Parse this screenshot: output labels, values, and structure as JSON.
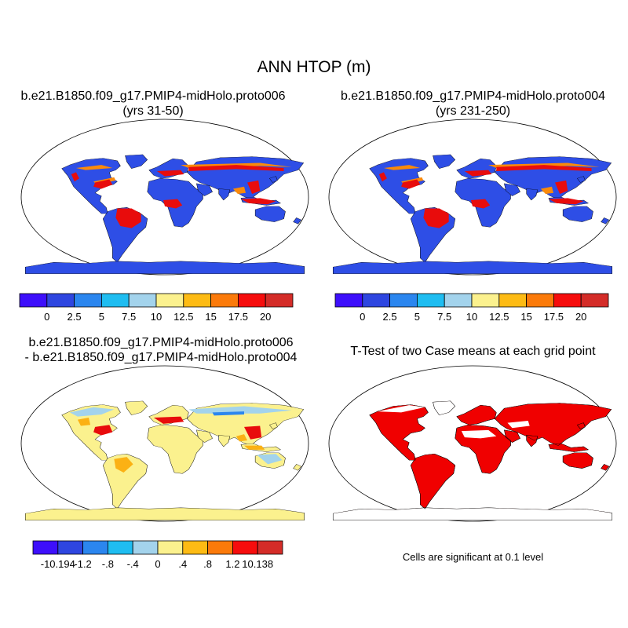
{
  "title": "ANN HTOP (m)",
  "panels": [
    {
      "id": "case1",
      "title_lines": [
        "b.e21.B1850.f09_g17.PMIP4-midHolo.proto006",
        "(yrs 31-50)"
      ],
      "colorbar": {
        "labels": [
          "0",
          "2.5",
          "5",
          "7.5",
          "10",
          "12.5",
          "15",
          "17.5",
          "20"
        ],
        "colors": [
          "#3d0ffb",
          "#2e46e0",
          "#2b86ef",
          "#1fbdf1",
          "#a3d3ec",
          "#fbf18e",
          "#fdbb14",
          "#fb7a0a",
          "#f60d0d",
          "#d42c28"
        ]
      }
    },
    {
      "id": "case2",
      "title_lines": [
        "b.e21.B1850.f09_g17.PMIP4-midHolo.proto004",
        "(yrs 231-250)"
      ],
      "colorbar": {
        "labels": [
          "0",
          "2.5",
          "5",
          "7.5",
          "10",
          "12.5",
          "15",
          "17.5",
          "20"
        ],
        "colors": [
          "#3d0ffb",
          "#2e46e0",
          "#2b86ef",
          "#1fbdf1",
          "#a3d3ec",
          "#fbf18e",
          "#fdbb14",
          "#fb7a0a",
          "#f60d0d",
          "#d42c28"
        ]
      }
    },
    {
      "id": "diff",
      "title_lines": [
        "b.e21.B1850.f09_g17.PMIP4-midHolo.proto006",
        "- b.e21.B1850.f09_g17.PMIP4-midHolo.proto004"
      ],
      "colorbar": {
        "labels": [
          "-10.194",
          "-1.2",
          "-.8",
          "-.4",
          "0",
          ".4",
          ".8",
          "1.2",
          "10.138"
        ],
        "colors": [
          "#3d0ffb",
          "#2e46e0",
          "#2b86ef",
          "#1fbdf1",
          "#a3d3ec",
          "#fbf18e",
          "#fdbb14",
          "#fb7a0a",
          "#f60d0d",
          "#d42c28"
        ]
      }
    },
    {
      "id": "ttest",
      "title_lines": [
        "T-Test of two Case means at each grid point"
      ],
      "note": "Cells are significant at 0.1 level",
      "colors": {
        "significant": "#f00000"
      }
    }
  ]
}
